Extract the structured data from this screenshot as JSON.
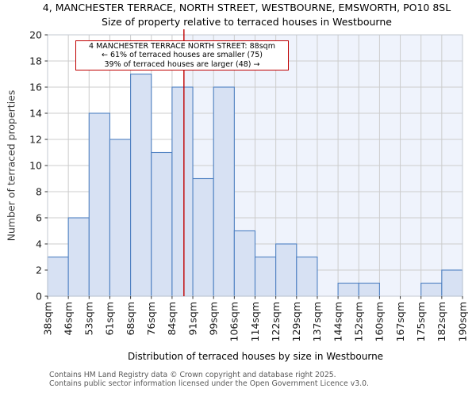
{
  "title": "4, MANCHESTER TERRACE, NORTH STREET, WESTBOURNE, EMSWORTH, PO10 8SL",
  "subtitle": "Size of property relative to terraced houses in Westbourne",
  "chart_data": {
    "type": "bar",
    "title": "4, MANCHESTER TERRACE, NORTH STREET, WESTBOURNE, EMSWORTH, PO10 8SL",
    "subtitle": "Size of property relative to terraced houses in Westbourne",
    "xlabel": "Distribution of terraced houses by size in Westbourne",
    "ylabel": "Number of terraced properties",
    "bin_edge_labels": [
      "38sqm",
      "46sqm",
      "53sqm",
      "61sqm",
      "68sqm",
      "76sqm",
      "84sqm",
      "91sqm",
      "99sqm",
      "106sqm",
      "114sqm",
      "122sqm",
      "129sqm",
      "137sqm",
      "144sqm",
      "152sqm",
      "160sqm",
      "167sqm",
      "175sqm",
      "182sqm",
      "190sqm"
    ],
    "values": [
      3,
      6,
      14,
      12,
      17,
      11,
      16,
      9,
      16,
      5,
      3,
      4,
      3,
      0,
      1,
      1,
      0,
      0,
      1,
      2
    ],
    "ylim": [
      0,
      20
    ],
    "ytick_step": 2,
    "grid": true,
    "marker": {
      "value_sqm": 88,
      "label": "4 MANCHESTER TERRACE NORTH STREET: 88sqm",
      "smaller_text": "← 61% of terraced houses are smaller (75)",
      "larger_text": "39% of terraced houses are larger (48) →"
    },
    "colors": {
      "bar_fill": "#d7e1f3",
      "bar_edge": "#4f81c2",
      "marker_line": "#c00000",
      "shade_right_of_marker": "#eff3fc",
      "grid": "#cccccc",
      "frame": "#c3c9d2",
      "tick_text": "#1a1a1a",
      "axis_text": "#3d3d3d",
      "footer_text": "#595959"
    }
  },
  "footer": {
    "line1": "Contains HM Land Registry data © Crown copyright and database right 2025.",
    "line2": "Contains public sector information licensed under the Open Government Licence v3.0."
  }
}
